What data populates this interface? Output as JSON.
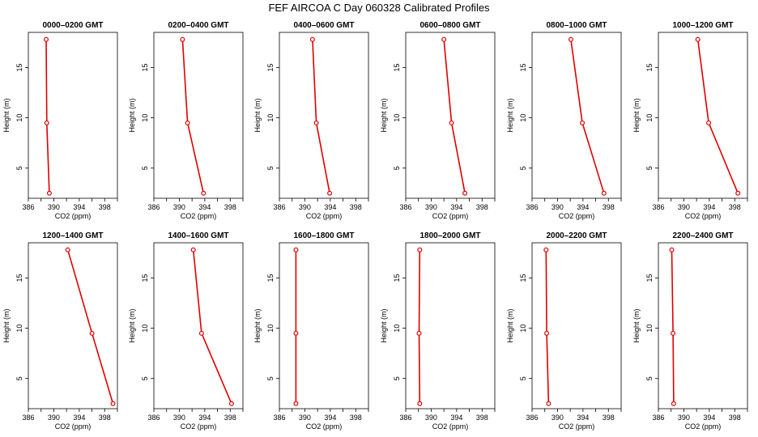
{
  "figure": {
    "title": "FEF AIRCOA C  Day 060328  Calibrated Profiles"
  },
  "colors": {
    "line": "#e00000",
    "marker": "#e00000",
    "axis": "#000000"
  },
  "chart_data": [
    {
      "type": "line",
      "title": "0000–0200 GMT",
      "xlabel": "CO2 (ppm)",
      "ylabel": "Height (m)",
      "xlim": [
        386,
        400
      ],
      "ylim": [
        2,
        18.5
      ],
      "xticks": [
        386,
        390,
        394,
        398
      ],
      "yticks": [
        5,
        10,
        15
      ],
      "series": [
        {
          "x": [
            389.3,
            388.9,
            388.8
          ],
          "y": [
            2.5,
            9.5,
            17.8
          ]
        }
      ]
    },
    {
      "type": "line",
      "title": "0200–0400 GMT",
      "xlabel": "CO2 (ppm)",
      "ylabel": "Height (m)",
      "xlim": [
        386,
        400
      ],
      "ylim": [
        2,
        18.5
      ],
      "xticks": [
        386,
        390,
        394,
        398
      ],
      "yticks": [
        5,
        10,
        15
      ],
      "series": [
        {
          "x": [
            393.8,
            391.3,
            390.5
          ],
          "y": [
            2.5,
            9.5,
            17.8
          ]
        }
      ]
    },
    {
      "type": "line",
      "title": "0400–0600 GMT",
      "xlabel": "CO2 (ppm)",
      "ylabel": "Height (m)",
      "xlim": [
        386,
        400
      ],
      "ylim": [
        2,
        18.5
      ],
      "xticks": [
        386,
        390,
        394,
        398
      ],
      "yticks": [
        5,
        10,
        15
      ],
      "series": [
        {
          "x": [
            393.9,
            391.8,
            391.2
          ],
          "y": [
            2.5,
            9.5,
            17.8
          ]
        }
      ]
    },
    {
      "type": "line",
      "title": "0600–0800 GMT",
      "xlabel": "CO2 (ppm)",
      "ylabel": "Height (m)",
      "xlim": [
        386,
        400
      ],
      "ylim": [
        2,
        18.5
      ],
      "xticks": [
        386,
        390,
        394,
        398
      ],
      "yticks": [
        5,
        10,
        15
      ],
      "series": [
        {
          "x": [
            395.3,
            393.2,
            392.0
          ],
          "y": [
            2.5,
            9.5,
            17.8
          ]
        }
      ]
    },
    {
      "type": "line",
      "title": "0800–1000 GMT",
      "xlabel": "CO2 (ppm)",
      "ylabel": "Height (m)",
      "xlim": [
        386,
        400
      ],
      "ylim": [
        2,
        18.5
      ],
      "xticks": [
        386,
        390,
        394,
        398
      ],
      "yticks": [
        5,
        10,
        15
      ],
      "series": [
        {
          "x": [
            397.3,
            393.9,
            392.1
          ],
          "y": [
            2.5,
            9.5,
            17.8
          ]
        }
      ]
    },
    {
      "type": "line",
      "title": "1000–1200 GMT",
      "xlabel": "CO2 (ppm)",
      "ylabel": "Height (m)",
      "xlim": [
        386,
        400
      ],
      "ylim": [
        2,
        18.5
      ],
      "xticks": [
        386,
        390,
        394,
        398
      ],
      "yticks": [
        5,
        10,
        15
      ],
      "series": [
        {
          "x": [
            398.5,
            393.9,
            392.2
          ],
          "y": [
            2.5,
            9.5,
            17.8
          ]
        }
      ]
    },
    {
      "type": "line",
      "title": "1200–1400 GMT",
      "xlabel": "CO2 (ppm)",
      "ylabel": "Height (m)",
      "xlim": [
        386,
        400
      ],
      "ylim": [
        2,
        18.5
      ],
      "xticks": [
        386,
        390,
        394,
        398
      ],
      "yticks": [
        5,
        10,
        15
      ],
      "series": [
        {
          "x": [
            399.3,
            396.0,
            392.2
          ],
          "y": [
            2.5,
            9.5,
            17.8
          ]
        }
      ]
    },
    {
      "type": "line",
      "title": "1400–1600 GMT",
      "xlabel": "CO2 (ppm)",
      "ylabel": "Height (m)",
      "xlim": [
        386,
        400
      ],
      "ylim": [
        2,
        18.5
      ],
      "xticks": [
        386,
        390,
        394,
        398
      ],
      "yticks": [
        5,
        10,
        15
      ],
      "series": [
        {
          "x": [
            398.2,
            393.5,
            392.2
          ],
          "y": [
            2.5,
            9.5,
            17.8
          ]
        }
      ]
    },
    {
      "type": "line",
      "title": "1600–1800 GMT",
      "xlabel": "CO2 (ppm)",
      "ylabel": "Height (m)",
      "xlim": [
        386,
        400
      ],
      "ylim": [
        2,
        18.5
      ],
      "xticks": [
        386,
        390,
        394,
        398
      ],
      "yticks": [
        5,
        10,
        15
      ],
      "series": [
        {
          "x": [
            388.6,
            388.6,
            388.6
          ],
          "y": [
            2.5,
            9.5,
            17.8
          ]
        }
      ]
    },
    {
      "type": "line",
      "title": "1800–2000 GMT",
      "xlabel": "CO2 (ppm)",
      "ylabel": "Height (m)",
      "xlim": [
        386,
        400
      ],
      "ylim": [
        2,
        18.5
      ],
      "xticks": [
        386,
        390,
        394,
        398
      ],
      "yticks": [
        5,
        10,
        15
      ],
      "series": [
        {
          "x": [
            388.2,
            388.1,
            388.2
          ],
          "y": [
            2.5,
            9.5,
            17.8
          ]
        }
      ]
    },
    {
      "type": "line",
      "title": "2000–2200 GMT",
      "xlabel": "CO2 (ppm)",
      "ylabel": "Height (m)",
      "xlim": [
        386,
        400
      ],
      "ylim": [
        2,
        18.5
      ],
      "xticks": [
        386,
        390,
        394,
        398
      ],
      "yticks": [
        5,
        10,
        15
      ],
      "series": [
        {
          "x": [
            388.6,
            388.3,
            388.2
          ],
          "y": [
            2.5,
            9.5,
            17.8
          ]
        }
      ]
    },
    {
      "type": "line",
      "title": "2200–2400 GMT",
      "xlabel": "CO2 (ppm)",
      "ylabel": "Height (m)",
      "xlim": [
        386,
        400
      ],
      "ylim": [
        2,
        18.5
      ],
      "xticks": [
        386,
        390,
        394,
        398
      ],
      "yticks": [
        5,
        10,
        15
      ],
      "series": [
        {
          "x": [
            388.4,
            388.3,
            388.1
          ],
          "y": [
            2.5,
            9.5,
            17.8
          ]
        }
      ]
    }
  ]
}
